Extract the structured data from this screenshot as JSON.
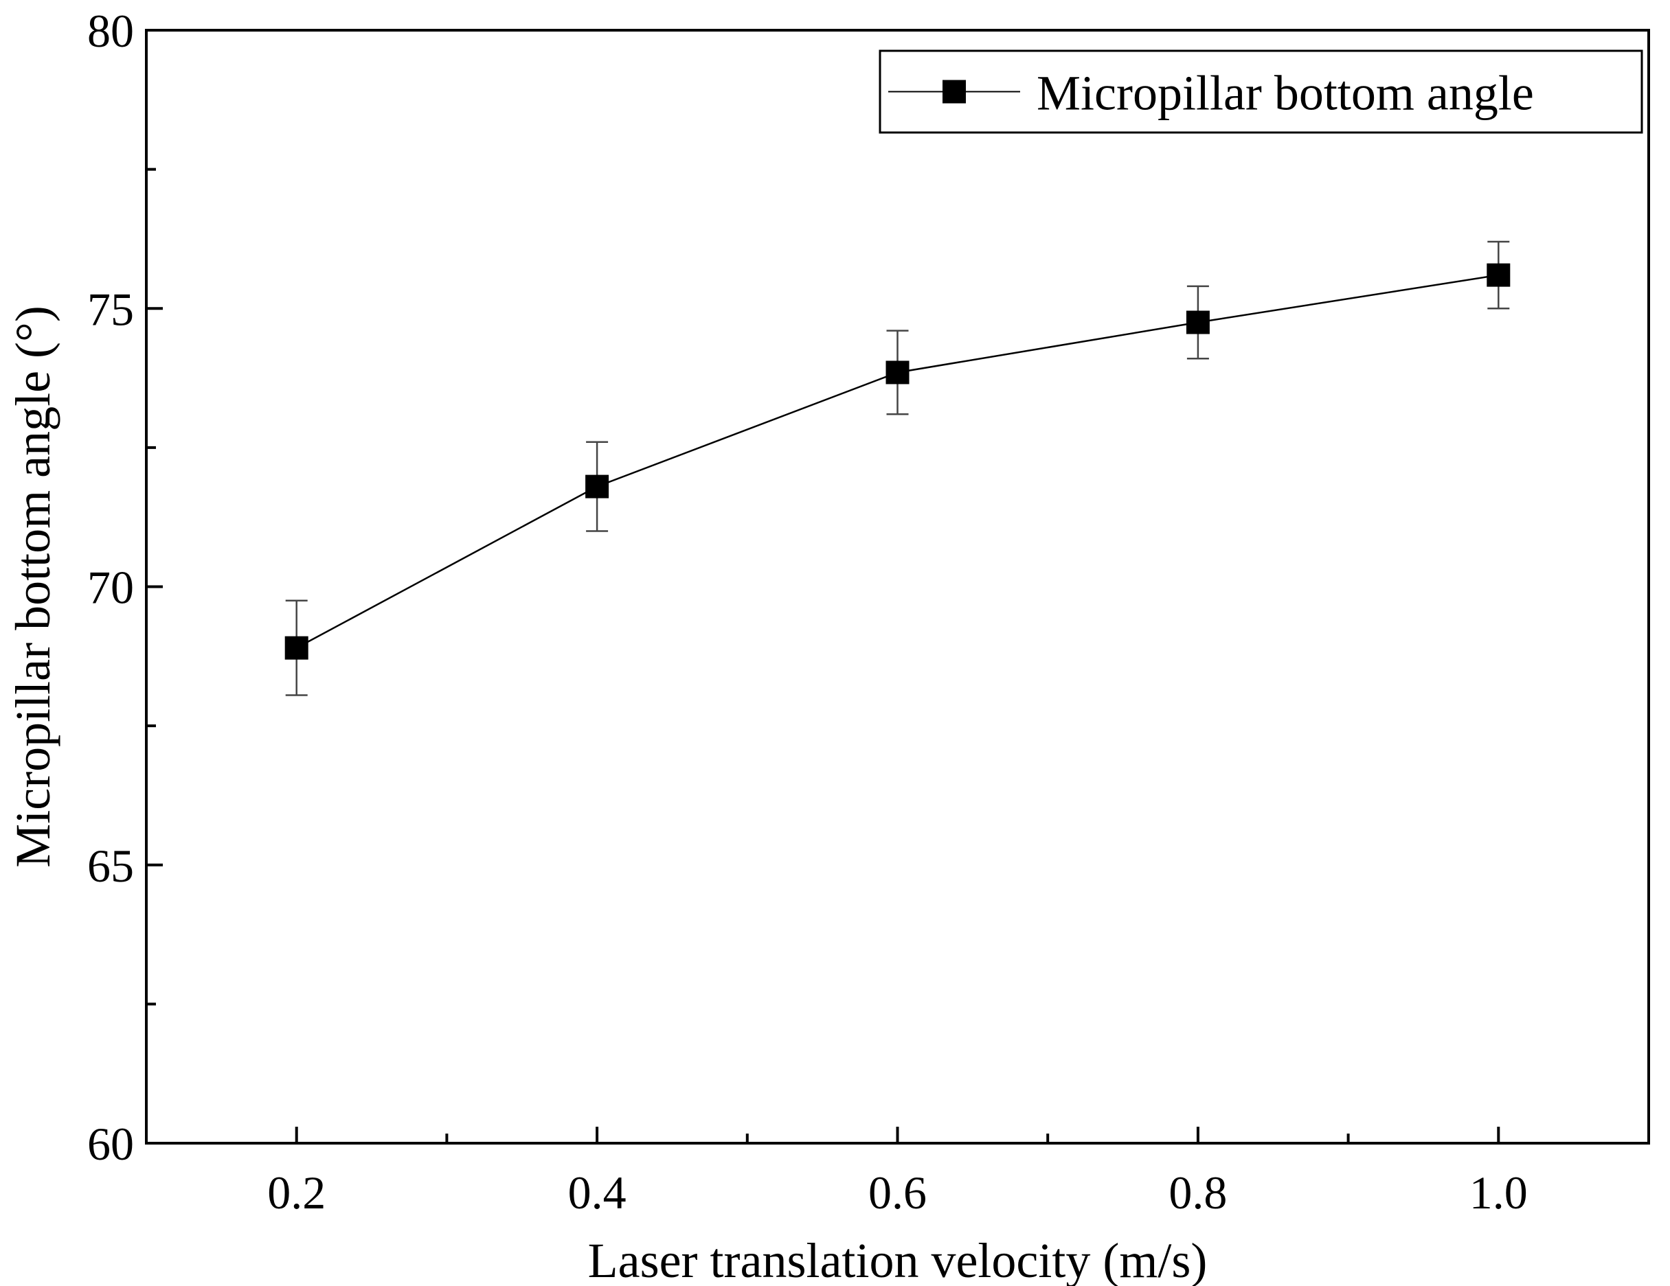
{
  "chart_data": {
    "type": "line",
    "title": "",
    "xlabel": "Laser translation velocity (m/s)",
    "ylabel": "Micropillar  bottom angle (°)",
    "xlim": [
      0.1,
      1.1
    ],
    "ylim": [
      60,
      80
    ],
    "x_ticks": [
      0.2,
      0.4,
      0.6,
      0.8,
      1.0
    ],
    "x_tick_labels": [
      "0.2",
      "0.4",
      "0.6",
      "0.8",
      "1.0"
    ],
    "x_minor_ticks": [
      0.3,
      0.5,
      0.7,
      0.9
    ],
    "y_ticks": [
      60,
      65,
      70,
      75,
      80
    ],
    "y_tick_labels": [
      "60",
      "65",
      "70",
      "75",
      "80"
    ],
    "y_minor_ticks": [
      62.5,
      67.5,
      72.5,
      77.5
    ],
    "legend_position": "top-right",
    "series": [
      {
        "name": "Micropillar  bottom angle",
        "marker": "square",
        "color": "#000000",
        "x": [
          0.2,
          0.4,
          0.6,
          0.8,
          1.0
        ],
        "values": [
          68.9,
          71.8,
          73.85,
          74.75,
          75.6
        ],
        "error": [
          0.85,
          0.8,
          0.75,
          0.65,
          0.6
        ]
      }
    ]
  }
}
